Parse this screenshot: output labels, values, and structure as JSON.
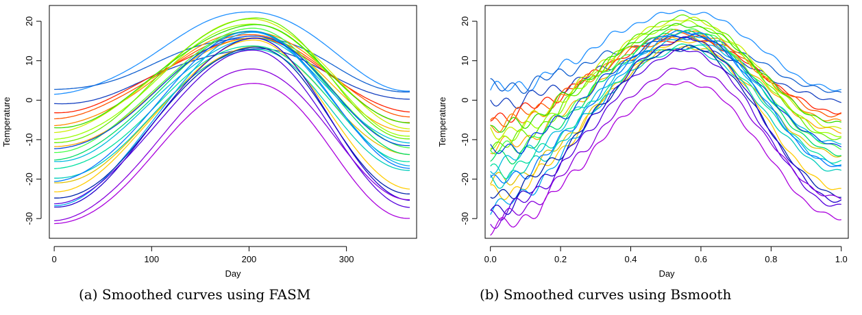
{
  "captions": {
    "a": "(a) Smoothed curves using FASM",
    "b": "(b) Smoothed curves using Bsmooth"
  },
  "chart_data": [
    {
      "type": "line",
      "xlabel": "Day",
      "ylabel": "Temperature",
      "xlim": [
        -5,
        372
      ],
      "ylim": [
        -35,
        24
      ],
      "xticks": [
        0,
        100,
        200,
        300
      ],
      "yticks": [
        -30,
        -20,
        -10,
        0,
        10,
        20
      ],
      "grid": false,
      "legend": "none",
      "x_peak": 205,
      "series": [
        {
          "color": "#1e90ff",
          "winter": 1.5,
          "summer": 22.5,
          "end": 2.5
        },
        {
          "color": "#1060d0",
          "winter": 2.5,
          "summer": 16.0,
          "end": 2.0
        },
        {
          "color": "#1540c0",
          "winter": -1.0,
          "summer": 13.0,
          "end": 0.0
        },
        {
          "color": "#ff2200",
          "winter": -3.0,
          "summer": 15.5,
          "end": -3.0
        },
        {
          "color": "#ff5500",
          "winter": -4.5,
          "summer": 16.5,
          "end": -4.0
        },
        {
          "color": "#ff8800",
          "winter": -6.5,
          "summer": 17.5,
          "end": -5.5
        },
        {
          "color": "#ffaa00",
          "winter": -12.0,
          "summer": 16.0,
          "end": -8.0
        },
        {
          "color": "#e0c000",
          "winter": -21.0,
          "summer": 13.5,
          "end": -14.0
        },
        {
          "color": "#ffcc00",
          "winter": -23.0,
          "summer": 15.0,
          "end": -22.5
        },
        {
          "color": "#ccee00",
          "winter": -8.0,
          "summer": 20.5,
          "end": -7.0
        },
        {
          "color": "#99ff00",
          "winter": -10.0,
          "summer": 19.5,
          "end": -9.0
        },
        {
          "color": "#66ee00",
          "winter": -11.0,
          "summer": 21.0,
          "end": -10.0
        },
        {
          "color": "#33dd00",
          "winter": -7.0,
          "summer": 19.0,
          "end": -6.0
        },
        {
          "color": "#44ff44",
          "winter": -13.0,
          "summer": 18.0,
          "end": -12.0
        },
        {
          "color": "#00dd66",
          "winter": -15.0,
          "summer": 17.5,
          "end": -13.5
        },
        {
          "color": "#00e0a0",
          "winter": -17.5,
          "summer": 14.0,
          "end": -15.5
        },
        {
          "color": "#00ccbb",
          "winter": -20.0,
          "summer": 13.0,
          "end": -18.0
        },
        {
          "color": "#00bbdd",
          "winter": -15.5,
          "summer": 15.5,
          "end": -11.0
        },
        {
          "color": "#00aaee",
          "winter": -26.5,
          "summer": 17.0,
          "end": -16.5
        },
        {
          "color": "#0077ff",
          "winter": -20.5,
          "summer": 17.5,
          "end": -17.0
        },
        {
          "color": "#0044dd",
          "winter": -12.5,
          "summer": 16.5,
          "end": -11.5
        },
        {
          "color": "#0022aa",
          "winter": -25.0,
          "summer": 13.5,
          "end": -24.0
        },
        {
          "color": "#2200cc",
          "winter": -27.0,
          "summer": 15.5,
          "end": -25.5
        },
        {
          "color": "#5500dd",
          "winter": -26.0,
          "summer": 12.5,
          "end": -27.0
        },
        {
          "color": "#8800dd",
          "winter": -30.5,
          "summer": 8.0,
          "end": -25.0
        },
        {
          "color": "#aa00dd",
          "winter": -31.5,
          "summer": 4.5,
          "end": -30.0
        }
      ]
    },
    {
      "type": "line",
      "xlabel": "Day",
      "ylabel": "Temperature",
      "xlim": [
        -0.015,
        1.02
      ],
      "ylim": [
        -35,
        24
      ],
      "xticks": [
        0.0,
        0.2,
        0.4,
        0.6,
        0.8,
        1.0
      ],
      "yticks": [
        -30,
        -20,
        -10,
        0,
        10,
        20
      ],
      "grid": false,
      "legend": "none",
      "x_peak": 0.56,
      "series": [
        {
          "color": "#1e90ff",
          "winter": 2.5,
          "summer": 22.5,
          "end": 2.5
        },
        {
          "color": "#1060d0",
          "winter": 3.0,
          "summer": 16.0,
          "end": 2.0
        },
        {
          "color": "#1540c0",
          "winter": -0.5,
          "summer": 13.0,
          "end": 0.0
        },
        {
          "color": "#ff2200",
          "winter": -4.0,
          "summer": 15.5,
          "end": -3.0
        },
        {
          "color": "#ff5500",
          "winter": -5.0,
          "summer": 16.5,
          "end": -4.0
        },
        {
          "color": "#ff8800",
          "winter": -6.5,
          "summer": 17.5,
          "end": -5.5
        },
        {
          "color": "#ffaa00",
          "winter": -12.0,
          "summer": 16.0,
          "end": -8.0
        },
        {
          "color": "#e0c000",
          "winter": -21.0,
          "summer": 13.5,
          "end": -14.0
        },
        {
          "color": "#ffcc00",
          "winter": -24.0,
          "summer": 15.0,
          "end": -22.5
        },
        {
          "color": "#ccee00",
          "winter": -8.0,
          "summer": 20.5,
          "end": -7.0
        },
        {
          "color": "#99ff00",
          "winter": -10.0,
          "summer": 19.5,
          "end": -9.0
        },
        {
          "color": "#66ee00",
          "winter": -11.5,
          "summer": 21.0,
          "end": -10.0
        },
        {
          "color": "#33dd00",
          "winter": -7.5,
          "summer": 19.0,
          "end": -6.0
        },
        {
          "color": "#44ff44",
          "winter": -13.0,
          "summer": 18.0,
          "end": -12.0
        },
        {
          "color": "#00dd66",
          "winter": -15.0,
          "summer": 17.5,
          "end": -13.5
        },
        {
          "color": "#00e0a0",
          "winter": -18.0,
          "summer": 14.0,
          "end": -15.5
        },
        {
          "color": "#00ccbb",
          "winter": -20.0,
          "summer": 13.0,
          "end": -18.0
        },
        {
          "color": "#00bbdd",
          "winter": -16.0,
          "summer": 15.5,
          "end": -11.0
        },
        {
          "color": "#00aaee",
          "winter": -27.0,
          "summer": 17.0,
          "end": -16.5
        },
        {
          "color": "#0077ff",
          "winter": -21.0,
          "summer": 17.5,
          "end": -17.0
        },
        {
          "color": "#0044dd",
          "winter": -13.0,
          "summer": 16.5,
          "end": -11.5
        },
        {
          "color": "#0022aa",
          "winter": -24.0,
          "summer": 13.5,
          "end": -24.0
        },
        {
          "color": "#2200cc",
          "winter": -27.5,
          "summer": 15.5,
          "end": -25.5
        },
        {
          "color": "#5500dd",
          "winter": -28.5,
          "summer": 12.5,
          "end": -27.0
        },
        {
          "color": "#8800dd",
          "winter": -30.5,
          "summer": 8.0,
          "end": -25.0
        },
        {
          "color": "#aa00dd",
          "winter": -32.5,
          "summer": 4.5,
          "end": -30.0
        }
      ]
    }
  ]
}
